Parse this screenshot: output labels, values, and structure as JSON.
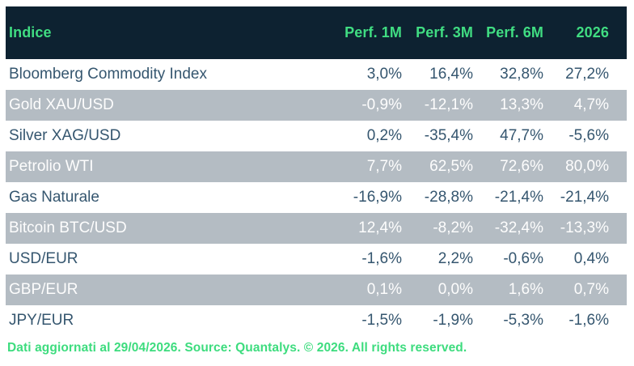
{
  "table": {
    "header": {
      "index_label": "Indice",
      "columns": [
        "Perf. 1M",
        "Perf. 3M",
        "Perf. 6M",
        "2026"
      ]
    },
    "rows": [
      {
        "name": "Bloomberg Commodity Index",
        "values": [
          "3,0%",
          "16,4%",
          "32,8%",
          "27,2%"
        ]
      },
      {
        "name": "Gold XAU/USD",
        "values": [
          "-0,9%",
          "-12,1%",
          "13,3%",
          "4,7%"
        ]
      },
      {
        "name": "Silver XAG/USD",
        "values": [
          "0,2%",
          "-35,4%",
          "47,7%",
          "-5,6%"
        ]
      },
      {
        "name": "Petrolio WTI",
        "values": [
          "7,7%",
          "62,5%",
          "72,6%",
          "80,0%"
        ]
      },
      {
        "name": "Gas Naturale",
        "values": [
          "-16,9%",
          "-28,8%",
          "-21,4%",
          "-21,4%"
        ]
      },
      {
        "name": "Bitcoin BTC/USD",
        "values": [
          "12,4%",
          "-8,2%",
          "-32,4%",
          "-13,3%"
        ]
      },
      {
        "name": "USD/EUR",
        "values": [
          "-1,6%",
          "2,2%",
          "-0,6%",
          "0,4%"
        ]
      },
      {
        "name": "GBP/EUR",
        "values": [
          "0,1%",
          "0,0%",
          "1,6%",
          "0,7%"
        ]
      },
      {
        "name": "JPY/EUR",
        "values": [
          "-1,5%",
          "-1,9%",
          "-5,3%",
          "-1,6%"
        ]
      }
    ]
  },
  "footer": {
    "text": "Dati aggiornati al 29/04/2026. Source: Quantalys. © 2026. All rights reserved."
  },
  "colors": {
    "header_bg": "#0d2231",
    "accent_green": "#3ddc7e",
    "row_alt_bg": "#b4bcc3",
    "row_bg": "#ffffff",
    "text_dark": "#35566f",
    "text_light": "#fdfdfd"
  },
  "chart_data": {
    "type": "table",
    "title": "Indice performance table",
    "columns": [
      "Indice",
      "Perf. 1M",
      "Perf. 3M",
      "Perf. 6M",
      "2026"
    ],
    "unit": "%",
    "decimal_separator": ",",
    "rows": [
      {
        "indice": "Bloomberg Commodity Index",
        "perf_1m": 3.0,
        "perf_3m": 16.4,
        "perf_6m": 32.8,
        "perf_2026": 27.2
      },
      {
        "indice": "Gold XAU/USD",
        "perf_1m": -0.9,
        "perf_3m": -12.1,
        "perf_6m": 13.3,
        "perf_2026": 4.7
      },
      {
        "indice": "Silver XAG/USD",
        "perf_1m": 0.2,
        "perf_3m": -35.4,
        "perf_6m": 47.7,
        "perf_2026": -5.6
      },
      {
        "indice": "Petrolio WTI",
        "perf_1m": 7.7,
        "perf_3m": 62.5,
        "perf_6m": 72.6,
        "perf_2026": 80.0
      },
      {
        "indice": "Gas Naturale",
        "perf_1m": -16.9,
        "perf_3m": -28.8,
        "perf_6m": -21.4,
        "perf_2026": -21.4
      },
      {
        "indice": "Bitcoin BTC/USD",
        "perf_1m": 12.4,
        "perf_3m": -8.2,
        "perf_6m": -32.4,
        "perf_2026": -13.3
      },
      {
        "indice": "USD/EUR",
        "perf_1m": -1.6,
        "perf_3m": 2.2,
        "perf_6m": -0.6,
        "perf_2026": 0.4
      },
      {
        "indice": "GBP/EUR",
        "perf_1m": 0.1,
        "perf_3m": 0.0,
        "perf_6m": 1.6,
        "perf_2026": 0.7
      },
      {
        "indice": "JPY/EUR",
        "perf_1m": -1.5,
        "perf_3m": -1.9,
        "perf_6m": -5.3,
        "perf_2026": -1.6
      }
    ]
  }
}
